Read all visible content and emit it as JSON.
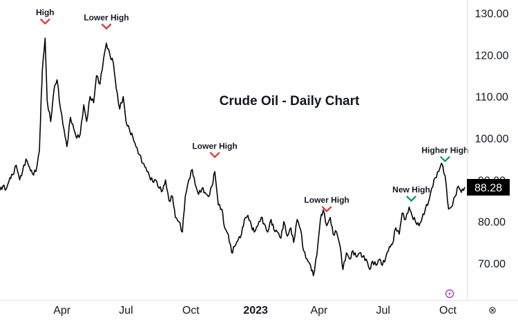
{
  "chart_data": {
    "type": "line",
    "title": "Crude Oil - Daily Chart",
    "x_axis": {
      "tick_labels": [
        {
          "label": "Apr",
          "date": "2022-04-01",
          "bold": false
        },
        {
          "label": "Jul",
          "date": "2022-07-01",
          "bold": false
        },
        {
          "label": "Oct",
          "date": "2022-10-01",
          "bold": false
        },
        {
          "label": "2023",
          "date": "2023-01-01",
          "bold": true
        },
        {
          "label": "Apr",
          "date": "2023-04-01",
          "bold": false
        },
        {
          "label": "Jul",
          "date": "2023-07-01",
          "bold": false
        },
        {
          "label": "Oct",
          "date": "2023-10-01",
          "bold": false
        }
      ],
      "range": [
        "2022-01-03",
        "2023-10-28"
      ]
    },
    "y_axis": {
      "position": "right",
      "tick_labels": [
        "130.00",
        "120.00",
        "110.00",
        "100.00",
        "90.00",
        "80.00",
        "70.00"
      ],
      "ticks": [
        130,
        120,
        110,
        100,
        90,
        80,
        70
      ],
      "range": [
        62.5,
        133.5
      ]
    },
    "last_price": {
      "label": "88.28",
      "value": 88.28
    },
    "grid": false,
    "legend": "none",
    "colors": {
      "line": "#000000",
      "bearish_marker": "#e53935",
      "bullish_marker": "#089981",
      "price_badge": "#000000"
    },
    "series": [
      {
        "x": [
          "2022-01-03",
          "2022-01-07",
          "2022-01-12",
          "2022-01-17",
          "2022-01-21",
          "2022-01-26",
          "2022-01-31",
          "2022-02-04",
          "2022-02-09",
          "2022-02-14",
          "2022-02-18",
          "2022-02-23",
          "2022-02-28",
          "2022-03-02",
          "2022-03-04",
          "2022-03-08",
          "2022-03-11",
          "2022-03-16",
          "2022-03-21",
          "2022-03-25",
          "2022-03-30",
          "2022-04-04",
          "2022-04-08",
          "2022-04-13",
          "2022-04-18",
          "2022-04-22",
          "2022-04-27",
          "2022-05-02",
          "2022-05-06",
          "2022-05-11",
          "2022-05-16",
          "2022-05-20",
          "2022-05-25",
          "2022-05-30",
          "2022-06-03",
          "2022-06-08",
          "2022-06-13",
          "2022-06-17",
          "2022-06-22",
          "2022-06-27",
          "2022-07-01",
          "2022-07-06",
          "2022-07-11",
          "2022-07-15",
          "2022-07-20",
          "2022-07-25",
          "2022-07-29",
          "2022-08-03",
          "2022-08-08",
          "2022-08-12",
          "2022-08-17",
          "2022-08-22",
          "2022-08-26",
          "2022-08-31",
          "2022-09-05",
          "2022-09-09",
          "2022-09-14",
          "2022-09-19",
          "2022-09-23",
          "2022-09-28",
          "2022-10-03",
          "2022-10-07",
          "2022-10-12",
          "2022-10-17",
          "2022-10-21",
          "2022-10-26",
          "2022-10-31",
          "2022-11-04",
          "2022-11-09",
          "2022-11-14",
          "2022-11-18",
          "2022-11-23",
          "2022-11-28",
          "2022-12-02",
          "2022-12-07",
          "2022-12-12",
          "2022-12-16",
          "2022-12-21",
          "2022-12-26",
          "2022-12-30",
          "2023-01-04",
          "2023-01-09",
          "2023-01-13",
          "2023-01-18",
          "2023-01-23",
          "2023-01-27",
          "2023-02-01",
          "2023-02-06",
          "2023-02-10",
          "2023-02-15",
          "2023-02-20",
          "2023-02-24",
          "2023-03-01",
          "2023-03-06",
          "2023-03-10",
          "2023-03-15",
          "2023-03-20",
          "2023-03-24",
          "2023-03-29",
          "2023-04-03",
          "2023-04-07",
          "2023-04-12",
          "2023-04-17",
          "2023-04-21",
          "2023-04-26",
          "2023-05-01",
          "2023-05-05",
          "2023-05-10",
          "2023-05-15",
          "2023-05-19",
          "2023-05-24",
          "2023-05-29",
          "2023-06-02",
          "2023-06-07",
          "2023-06-12",
          "2023-06-16",
          "2023-06-21",
          "2023-06-26",
          "2023-06-30",
          "2023-07-05",
          "2023-07-10",
          "2023-07-14",
          "2023-07-19",
          "2023-07-24",
          "2023-07-28",
          "2023-08-02",
          "2023-08-07",
          "2023-08-11",
          "2023-08-16",
          "2023-08-21",
          "2023-08-25",
          "2023-08-30",
          "2023-09-04",
          "2023-09-08",
          "2023-09-13",
          "2023-09-18",
          "2023-09-22",
          "2023-09-27",
          "2023-10-02",
          "2023-10-06",
          "2023-10-11",
          "2023-10-16",
          "2023-10-20",
          "2023-10-25"
        ],
        "y": [
          87.5,
          88.5,
          87.8,
          90.5,
          91.2,
          93.5,
          90.0,
          92.0,
          95.0,
          93.0,
          91.5,
          92.0,
          97.0,
          107.0,
          116.0,
          124.0,
          109.0,
          104.0,
          112.0,
          114.0,
          107.0,
          102.0,
          98.0,
          105.0,
          102.0,
          100.0,
          101.0,
          108.0,
          104.0,
          110.0,
          108.5,
          115.0,
          113.0,
          119.0,
          122.8,
          120.0,
          118.0,
          112.0,
          107.0,
          110.0,
          104.0,
          102.0,
          100.0,
          98.0,
          96.0,
          94.0,
          93.0,
          91.0,
          89.5,
          90.0,
          88.0,
          87.5,
          90.0,
          85.0,
          86.0,
          81.0,
          80.0,
          77.5,
          86.0,
          90.0,
          92.5,
          89.0,
          86.5,
          88.0,
          87.0,
          86.0,
          88.5,
          92.0,
          84.0,
          83.0,
          78.5,
          77.0,
          72.5,
          74.0,
          75.5,
          77.0,
          80.5,
          81.5,
          79.0,
          77.5,
          79.0,
          81.0,
          79.5,
          77.5,
          80.5,
          78.0,
          77.5,
          76.0,
          80.0,
          76.5,
          78.5,
          75.0,
          80.5,
          78.0,
          73.0,
          71.0,
          69.5,
          67.0,
          72.0,
          80.5,
          82.8,
          79.0,
          81.0,
          77.0,
          77.5,
          74.0,
          68.5,
          72.5,
          71.0,
          73.0,
          71.5,
          72.5,
          71.5,
          71.0,
          68.5,
          70.5,
          69.5,
          71.0,
          69.5,
          71.5,
          74.0,
          74.5,
          78.5,
          77.0,
          82.0,
          80.5,
          83.5,
          81.5,
          80.0,
          79.0,
          80.5,
          83.0,
          85.0,
          88.0,
          90.5,
          92.0,
          94.0,
          91.0,
          83.0,
          83.5,
          86.0,
          88.5,
          87.0,
          88.28
        ]
      }
    ],
    "annotations": [
      {
        "label": "High",
        "date": "2022-03-08",
        "direction": "down",
        "color": "bearish"
      },
      {
        "label": "Lower High",
        "date": "2022-06-03",
        "direction": "down",
        "color": "bearish"
      },
      {
        "label": "Lower High",
        "date": "2022-11-04",
        "direction": "down",
        "color": "bearish"
      },
      {
        "label": "Lower High",
        "date": "2023-04-12",
        "direction": "down",
        "color": "bearish"
      },
      {
        "label": "New High",
        "date": "2023-08-10",
        "direction": "down",
        "color": "bullish"
      },
      {
        "label": "Higher High",
        "date": "2023-09-27",
        "direction": "down",
        "color": "bullish"
      }
    ]
  },
  "footer_icons": {
    "settings": "settings-icon"
  },
  "chart_icons": {
    "tv_logo": "lightning-icon"
  }
}
